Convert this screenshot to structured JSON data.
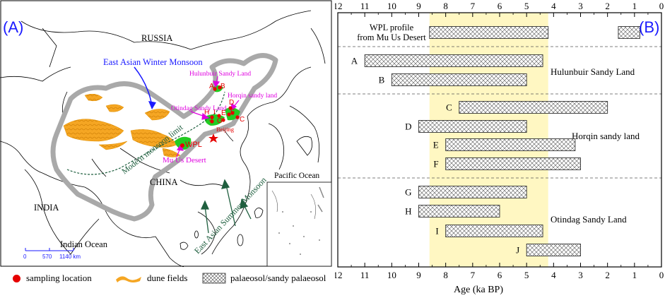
{
  "panel_a": {
    "label": "(A)",
    "regions": {
      "russia": "RUSSIA",
      "china": "CHINA",
      "india": "INDIA",
      "pacific": "Pacific Ocean",
      "indian": "Indian Ocean"
    },
    "monsoons": {
      "winter": "East  Asian  Winter Monsoon",
      "summer": "East Asian Summer Monsoon",
      "limit": "Modern monsoon limit"
    },
    "sites": {
      "hulunbuir": "Hulunbuir Sandy Land",
      "horqin": "Horqin sandy land",
      "otindag": "Otindag Sandy Land",
      "musus": "Mu Us Desert",
      "beijing": "Beijing",
      "wpl": "WPL"
    },
    "points": [
      "A",
      "B",
      "D",
      "E",
      "C",
      "H",
      "I",
      "G",
      "F",
      "J"
    ],
    "scale": {
      "zero": "0",
      "mid": "570",
      "end": "1140 km"
    }
  },
  "legend": {
    "sampling": "sampling location",
    "dune": "dune fields",
    "palaeosol": "palaeosol/sandy palaeosol"
  },
  "colors": {
    "dune": "#f5a623",
    "sample": "#e60000",
    "green": "#22cc22",
    "magenta": "#e000e0",
    "blue_label": "#1a1aff",
    "teal_label": "#1f5f3f",
    "highlight": "#fff7c2",
    "boundary": "#a9a9a9"
  },
  "chart_data": {
    "type": "range-bar",
    "panel_label": "(B)",
    "xlabel": "Age   (ka BP)",
    "xlim": [
      12,
      0
    ],
    "ticks": [
      "12",
      "11",
      "10",
      "9",
      "8",
      "7",
      "6",
      "5",
      "4",
      "3",
      "2",
      "1",
      "0"
    ],
    "highlight_range": [
      8.6,
      4.2
    ],
    "groups": [
      {
        "name": "WPL profile from Mu Us Desert",
        "name_lines": [
          "WPL profile",
          "from Mu Us Desert"
        ],
        "rows": [
          {
            "label": "",
            "segments": [
              [
                8.6,
                4.2
              ],
              [
                1.6,
                0.8
              ]
            ]
          }
        ]
      },
      {
        "name": "Hulunbuir Sandy Land",
        "rows": [
          {
            "label": "A",
            "segments": [
              [
                11.0,
                4.4
              ]
            ]
          },
          {
            "label": "B",
            "segments": [
              [
                10.0,
                5.0
              ]
            ]
          }
        ]
      },
      {
        "name": "Horqin sandy land",
        "rows": [
          {
            "label": "C",
            "segments": [
              [
                7.5,
                2.0
              ]
            ]
          },
          {
            "label": "D",
            "segments": [
              [
                9.0,
                5.0
              ]
            ]
          },
          {
            "label": "E",
            "segments": [
              [
                8.0,
                3.2
              ]
            ]
          },
          {
            "label": "F",
            "segments": [
              [
                8.0,
                3.0
              ]
            ]
          }
        ]
      },
      {
        "name": "Otindag Sandy Land",
        "rows": [
          {
            "label": "G",
            "segments": [
              [
                9.0,
                5.0
              ]
            ]
          },
          {
            "label": "H",
            "segments": [
              [
                9.0,
                6.0
              ]
            ]
          },
          {
            "label": "I",
            "segments": [
              [
                8.0,
                4.4
              ]
            ]
          },
          {
            "label": "J",
            "segments": [
              [
                5.0,
                3.0
              ]
            ]
          }
        ]
      }
    ]
  }
}
